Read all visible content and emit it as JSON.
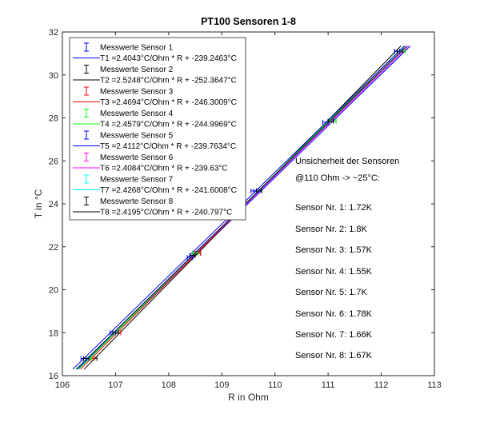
{
  "chart_data": {
    "type": "line",
    "title": "PT100 Sensoren 1-8",
    "xlabel": "R in Ohm",
    "ylabel": "T in °C",
    "xlim": [
      106,
      113
    ],
    "ylim": [
      16,
      32
    ],
    "xticks": [
      106,
      107,
      108,
      109,
      110,
      111,
      112,
      113
    ],
    "yticks": [
      16,
      18,
      20,
      22,
      24,
      26,
      28,
      30,
      32
    ],
    "grid": false,
    "legend_position": "top-left",
    "series": [
      {
        "name": "Sensor 1",
        "marker_label": "Messwerte Sensor 1",
        "fit_label": "T1 =2.4043°C/Ohm * R + -239.2463°C",
        "slope": 2.4043,
        "intercept": -239.2463,
        "color": "#0000ff",
        "points": [
          {
            "r": 106.5,
            "t": 16.8
          },
          {
            "r": 107.0,
            "t": 18.0
          },
          {
            "r": 108.5,
            "t": 21.7
          },
          {
            "r": 109.6,
            "t": 24.6
          },
          {
            "r": 111.05,
            "t": 27.85
          },
          {
            "r": 112.35,
            "t": 31.1
          }
        ]
      },
      {
        "name": "Sensor 2",
        "marker_label": "Messwerte Sensor 2",
        "fit_label": "T2 =2.5248°C/Ohm * R + -252.3647°C",
        "slope": 2.5248,
        "intercept": -252.3647,
        "color": "#000000",
        "points": [
          {
            "r": 106.6,
            "t": 16.8
          },
          {
            "r": 107.05,
            "t": 18.0
          },
          {
            "r": 108.55,
            "t": 21.7
          },
          {
            "r": 109.7,
            "t": 24.6
          },
          {
            "r": 111.05,
            "t": 27.85
          },
          {
            "r": 112.3,
            "t": 31.1
          }
        ]
      },
      {
        "name": "Sensor 3",
        "marker_label": "Messwerte Sensor 3",
        "fit_label": "T3 =2.4694°C/Ohm * R + -246.3009°C",
        "slope": 2.4694,
        "intercept": -246.3009,
        "color": "#ff0000",
        "points": [
          {
            "r": 106.55,
            "t": 16.8
          },
          {
            "r": 107.05,
            "t": 18.0
          },
          {
            "r": 108.55,
            "t": 21.7
          },
          {
            "r": 109.7,
            "t": 24.6
          },
          {
            "r": 111.1,
            "t": 27.85
          },
          {
            "r": 112.4,
            "t": 31.1
          }
        ]
      },
      {
        "name": "Sensor 4",
        "marker_label": "Messwerte Sensor 4",
        "fit_label": "T4 =2.4579°C/Ohm * R + -244.9969°C",
        "slope": 2.4579,
        "intercept": -244.9969,
        "color": "#00ff00",
        "points": [
          {
            "r": 106.5,
            "t": 16.8
          },
          {
            "r": 107.0,
            "t": 18.0
          },
          {
            "r": 108.5,
            "t": 21.7
          },
          {
            "r": 109.7,
            "t": 24.6
          },
          {
            "r": 111.1,
            "t": 27.85
          },
          {
            "r": 112.4,
            "t": 31.1
          }
        ]
      },
      {
        "name": "Sensor 5",
        "marker_label": "Messwerte Sensor 5",
        "fit_label": "T5 =2.4112°C/Ohm * R + -239.7634°C",
        "slope": 2.4112,
        "intercept": -239.7634,
        "color": "#0000ff",
        "points": [
          {
            "r": 106.4,
            "t": 16.8
          },
          {
            "r": 106.95,
            "t": 18.0
          },
          {
            "r": 108.4,
            "t": 21.5
          },
          {
            "r": 109.65,
            "t": 24.6
          },
          {
            "r": 110.95,
            "t": 27.8
          },
          {
            "r": 112.3,
            "t": 31.1
          }
        ]
      },
      {
        "name": "Sensor 6",
        "marker_label": "Messwerte Sensor 6",
        "fit_label": "T6 =2.4084°C/Ohm * R + -239.63°C",
        "slope": 2.4084,
        "intercept": -239.63,
        "color": "#ff00ff",
        "points": [
          {
            "r": 106.45,
            "t": 16.8
          },
          {
            "r": 107.0,
            "t": 18.0
          },
          {
            "r": 108.45,
            "t": 21.6
          },
          {
            "r": 109.7,
            "t": 24.6
          },
          {
            "r": 111.05,
            "t": 27.85
          },
          {
            "r": 112.35,
            "t": 31.1
          }
        ]
      },
      {
        "name": "Sensor 7",
        "marker_label": "Messwerte Sensor 7",
        "fit_label": "T7 =2.4268°C/Ohm * R + -241.6008°C",
        "slope": 2.4268,
        "intercept": -241.6008,
        "color": "#00ffff",
        "points": [
          {
            "r": 106.45,
            "t": 16.8
          },
          {
            "r": 107.0,
            "t": 18.0
          },
          {
            "r": 108.45,
            "t": 21.6
          },
          {
            "r": 109.7,
            "t": 24.6
          },
          {
            "r": 111.05,
            "t": 27.85
          },
          {
            "r": 112.35,
            "t": 31.1
          }
        ]
      },
      {
        "name": "Sensor 8",
        "marker_label": "Messwerte Sensor 8",
        "fit_label": "T8 =2.4195°C/Ohm * R + -240.797°C",
        "slope": 2.4195,
        "intercept": -240.797,
        "color": "#000000",
        "points": [
          {
            "r": 106.45,
            "t": 16.8
          },
          {
            "r": 107.0,
            "t": 18.0
          },
          {
            "r": 108.45,
            "t": 21.6
          },
          {
            "r": 109.7,
            "t": 24.6
          },
          {
            "r": 111.05,
            "t": 27.85
          },
          {
            "r": 112.35,
            "t": 31.1
          }
        ]
      }
    ],
    "annotations": [
      "Unsicherheit der Sensoren",
      "@110 Ohm -> ~25°C:",
      "Sensor Nr. 1: 1.72K",
      "Sensor Nr. 2: 1.8K",
      "Sensor Nr. 3: 1.57K",
      "Sensor Nr. 4: 1.55K",
      "Sensor Nr. 5: 1.7K",
      "Sensor Nr. 6: 1.78K",
      "Sensor Nr. 7: 1.66K",
      "Sensor Nr. 8: 1.67K"
    ]
  }
}
